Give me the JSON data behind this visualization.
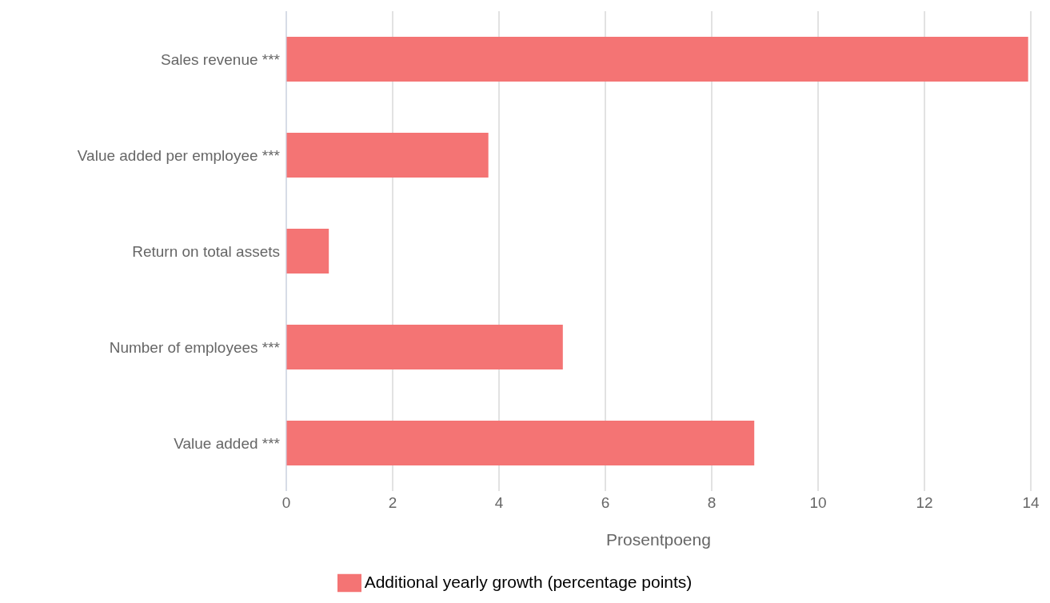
{
  "chart_data": {
    "type": "bar",
    "orientation": "horizontal",
    "xlabel": "Prosentpoeng",
    "categories": [
      "Sales revenue ***",
      "Value added per employee ***",
      "Return on total assets",
      "Number of employees ***",
      "Value added ***"
    ],
    "series": [
      {
        "name": "Additional yearly growth (percentage points)",
        "color": "#f47474",
        "values": [
          13.95,
          3.8,
          0.8,
          5.2,
          8.8
        ]
      }
    ],
    "xlim": [
      0,
      14
    ],
    "xticks": [
      0,
      2,
      4,
      6,
      8,
      10,
      12,
      14
    ],
    "grid": "x",
    "legend": "bottom"
  }
}
